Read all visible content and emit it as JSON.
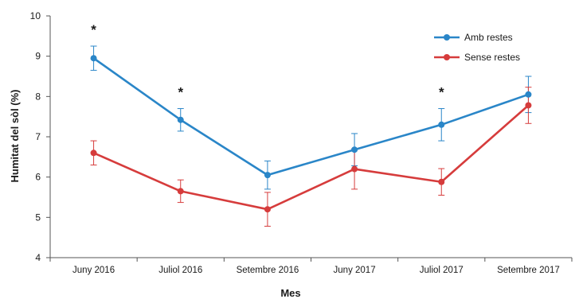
{
  "chart_data": {
    "type": "line",
    "categories": [
      "Juny 2016",
      "Juliol 2016",
      "Setembre 2016",
      "Juny 2017",
      "Juliol 2017",
      "Setembre 2017"
    ],
    "series": [
      {
        "name": "Amb restes",
        "color": "#2a86c8",
        "values": [
          8.95,
          7.42,
          6.05,
          6.68,
          7.3,
          8.05
        ],
        "error": [
          0.3,
          0.28,
          0.35,
          0.4,
          0.4,
          0.45
        ]
      },
      {
        "name": "Sense restes",
        "color": "#d63c3c",
        "values": [
          6.6,
          5.65,
          5.2,
          6.2,
          5.88,
          7.78
        ],
        "error": [
          0.3,
          0.28,
          0.42,
          0.5,
          0.33,
          0.45
        ]
      }
    ],
    "xlabel": "Mes",
    "ylabel": "Humitat del sòl (%)",
    "ylim": [
      4,
      10
    ],
    "yticks": [
      4,
      5,
      6,
      7,
      8,
      9,
      10
    ],
    "grid": false,
    "legend_position": "top-right",
    "significance": {
      "symbol": "*",
      "categories": [
        "Juny 2016",
        "Juliol 2016",
        "Juliol 2017"
      ]
    }
  }
}
